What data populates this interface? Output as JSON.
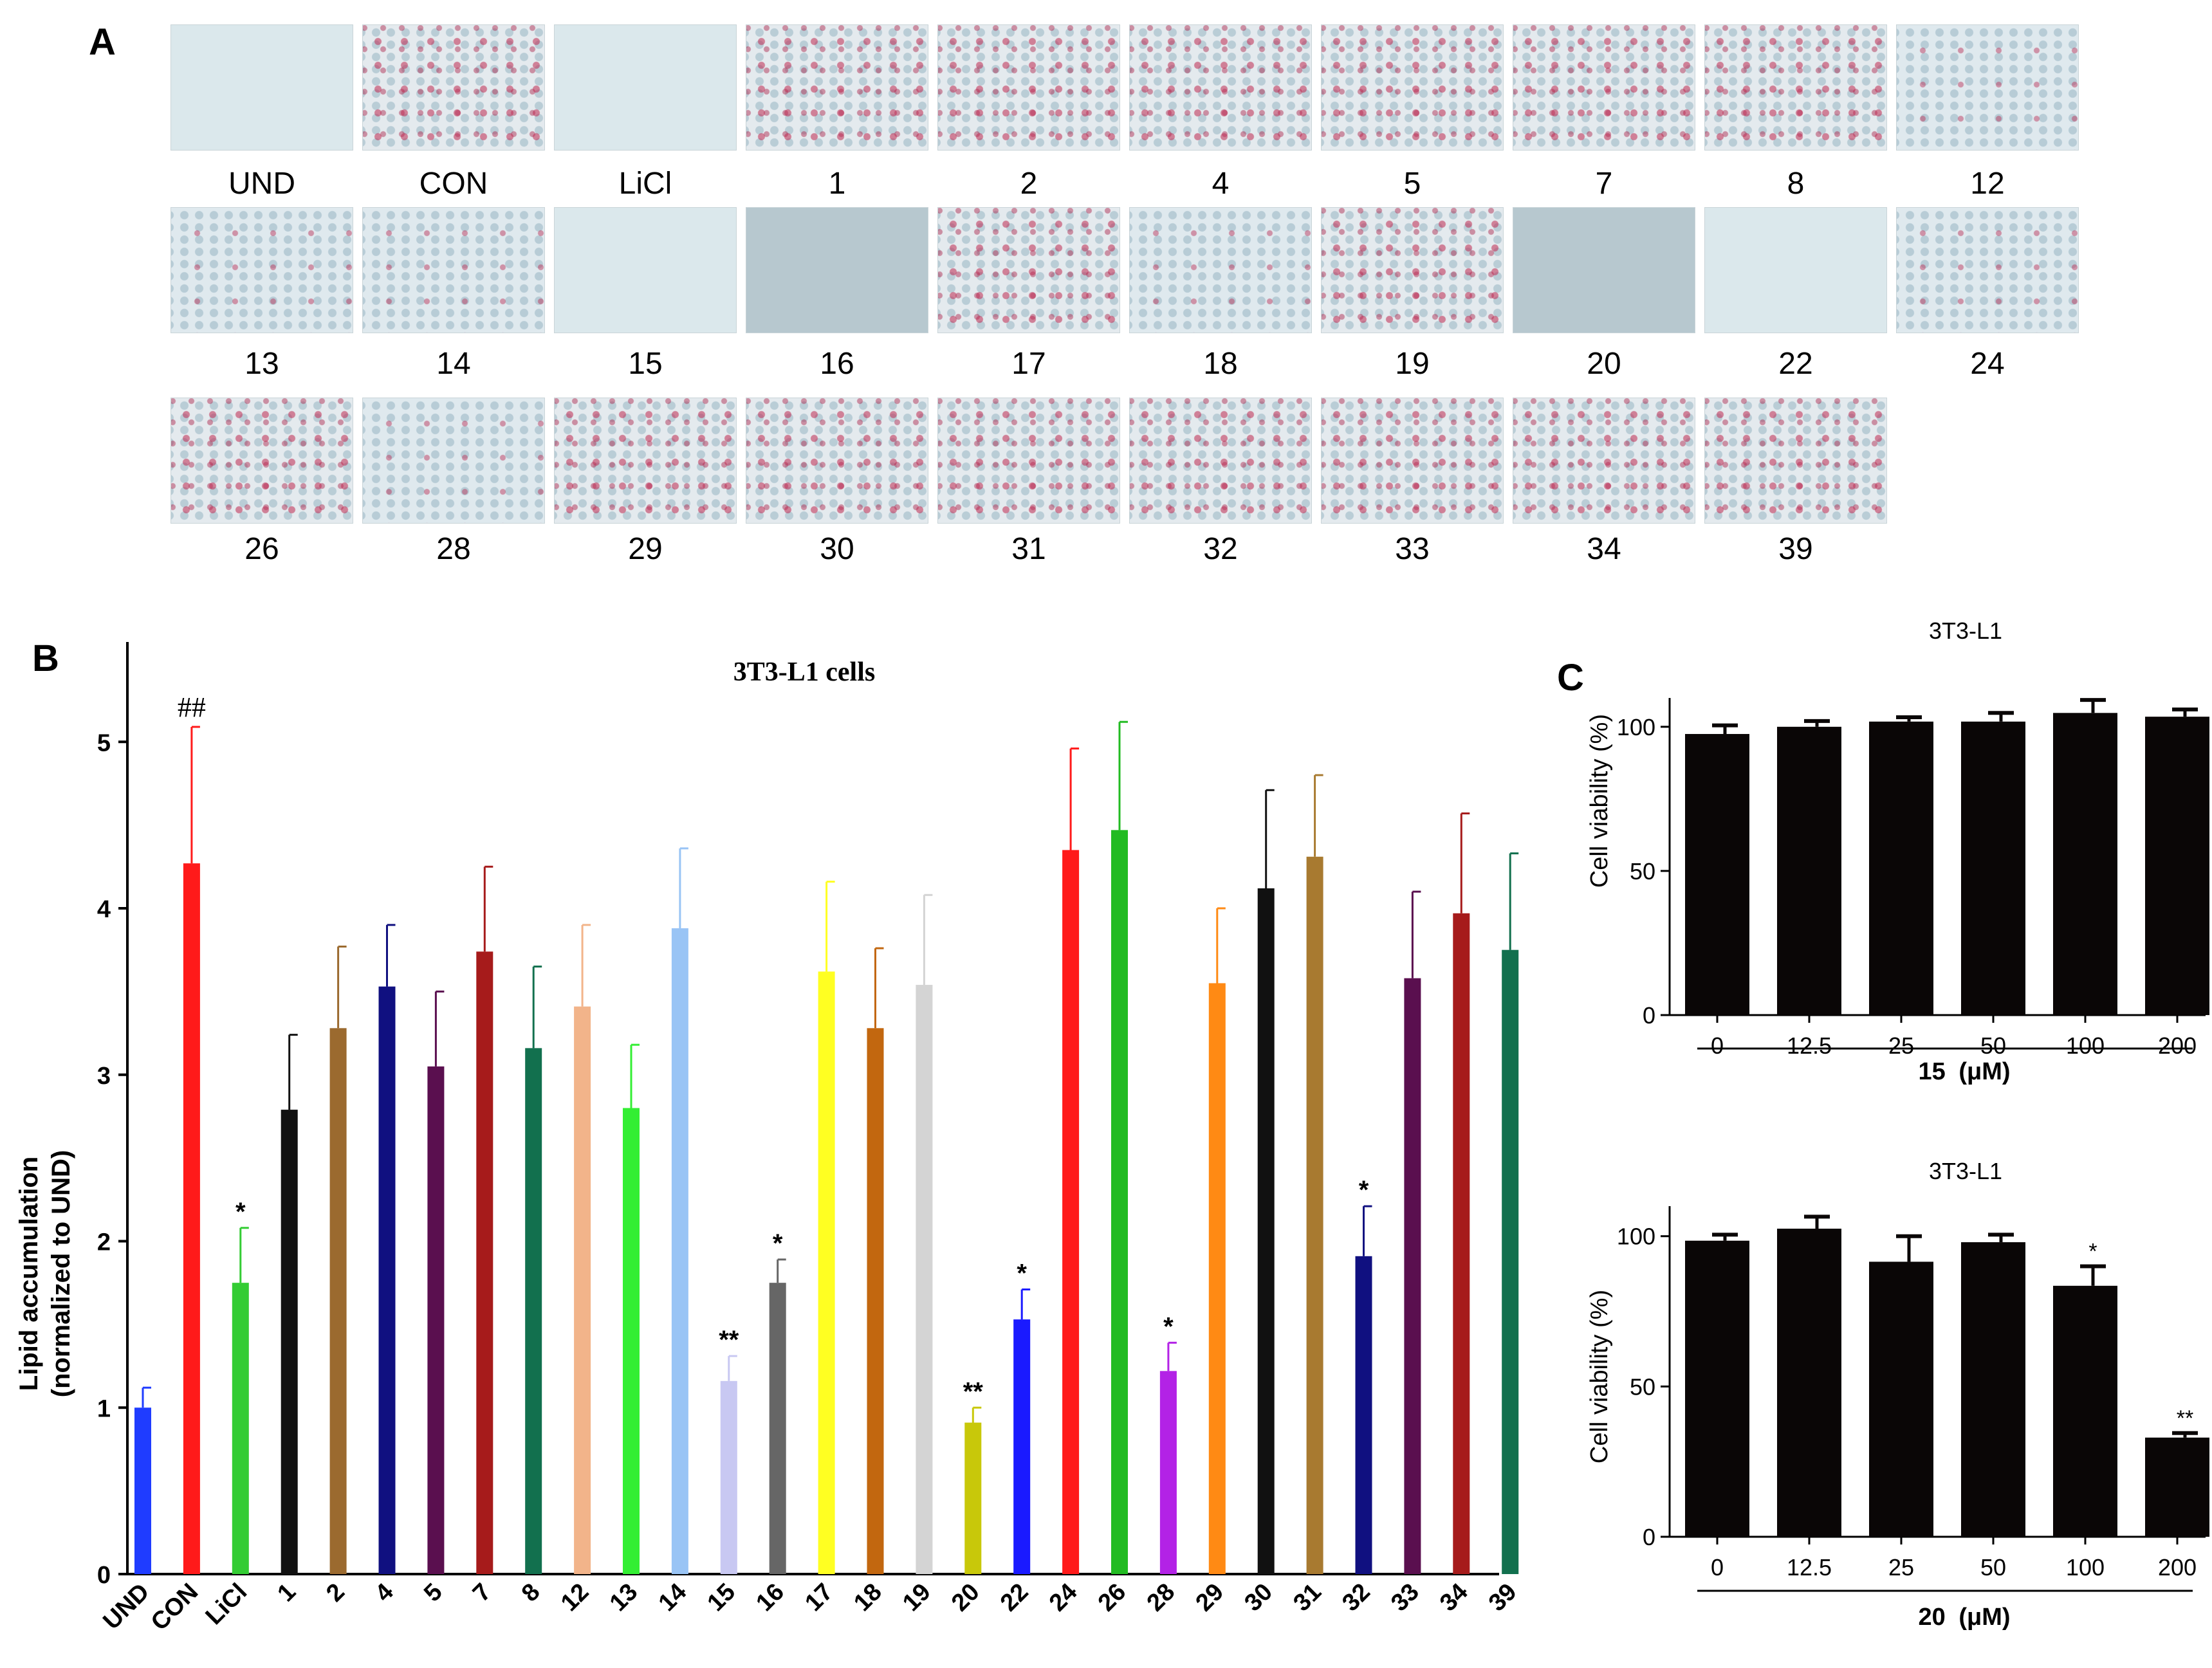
{
  "panels": {
    "a": "A",
    "b": "B",
    "c": "C"
  },
  "micrographs": {
    "rows": [
      [
        "UND",
        "CON",
        "LiCl",
        "1",
        "2",
        "4",
        "5",
        "7",
        "8",
        "12"
      ],
      [
        "13",
        "14",
        "15",
        "16",
        "17",
        "18",
        "19",
        "20",
        "22",
        "24"
      ],
      [
        "26",
        "28",
        "29",
        "30",
        "31",
        "32",
        "33",
        "34",
        "39"
      ]
    ]
  },
  "chart_data": [
    {
      "type": "bar",
      "title": "3T3-L1 cells",
      "xlabel": "",
      "ylabel_line1": "Lipid accumulation",
      "ylabel_line2": "(normalized to UND)",
      "ylim": [
        0,
        5.6
      ],
      "yticks": [
        "0",
        "1",
        "2",
        "3",
        "4",
        "5"
      ],
      "categories": [
        "UND",
        "CON",
        "LiCl",
        "1",
        "2",
        "4",
        "5",
        "7",
        "8",
        "12",
        "13",
        "14",
        "15",
        "16",
        "17",
        "18",
        "19",
        "20",
        "22",
        "24",
        "26",
        "28",
        "29",
        "30",
        "31",
        "32",
        "33",
        "34",
        "39"
      ],
      "values": [
        1.0,
        4.27,
        1.75,
        2.79,
        3.28,
        3.53,
        3.05,
        3.74,
        3.16,
        3.41,
        2.8,
        3.88,
        1.16,
        1.75,
        3.62,
        3.28,
        3.54,
        0.91,
        1.53,
        4.35,
        4.47,
        1.22,
        3.55,
        4.12,
        4.31,
        1.91,
        3.58,
        3.97,
        3.75
      ],
      "errors": [
        0.12,
        0.82,
        0.33,
        0.45,
        0.49,
        0.37,
        0.45,
        0.51,
        0.49,
        0.49,
        0.38,
        0.48,
        0.15,
        0.14,
        0.54,
        0.48,
        0.54,
        0.09,
        0.18,
        0.61,
        0.65,
        0.17,
        0.45,
        0.59,
        0.49,
        0.3,
        0.52,
        0.6,
        0.58
      ],
      "colors": [
        "#1f3cff",
        "#ff1a1a",
        "#33cc33",
        "#111111",
        "#9b6a2f",
        "#101080",
        "#5a0f4f",
        "#a61b1b",
        "#12704e",
        "#f2b48a",
        "#33ee33",
        "#99c4f5",
        "#c8c8f2",
        "#666666",
        "#ffff22",
        "#c2670f",
        "#d4d4d4",
        "#c8c80a",
        "#1a1aff",
        "#ff1a1a",
        "#22bb22",
        "#b322e6",
        "#ff8a14",
        "#111111",
        "#a87a30",
        "#101080",
        "#5a0f4f",
        "#a61b1b",
        "#12704e"
      ],
      "annotations": [
        "",
        "##",
        "*",
        "",
        "",
        "",
        "",
        "",
        "",
        "",
        "",
        "",
        "**",
        "*",
        "",
        "",
        "",
        "**",
        "*",
        "",
        "",
        "*",
        "",
        "",
        "",
        "*",
        "",
        "",
        ""
      ]
    },
    {
      "type": "bar",
      "title": "3T3-L1",
      "xlabel_bold": "15",
      "xlabel_unit": "(μM)",
      "ylabel": "Cell viability (%)",
      "ylim": [
        0,
        110
      ],
      "yticks": [
        "0",
        "50",
        "100"
      ],
      "categories": [
        "0",
        "12.5",
        "25",
        "50",
        "100",
        "200"
      ],
      "values": [
        97.5,
        100.0,
        101.8,
        101.8,
        104.8,
        103.5
      ],
      "errors": [
        3.0,
        2.0,
        1.5,
        3.0,
        4.5,
        2.5
      ],
      "annotations": [
        "",
        "",
        "",
        "",
        "",
        ""
      ]
    },
    {
      "type": "bar",
      "title": "3T3-L1",
      "xlabel_bold": "20",
      "xlabel_unit": "(μM)",
      "ylabel": "Cell viability (%)",
      "ylim": [
        0,
        110
      ],
      "yticks": [
        "0",
        "50",
        "100"
      ],
      "categories": [
        "0",
        "12.5",
        "25",
        "50",
        "100",
        "200"
      ],
      "values": [
        98.5,
        102.5,
        91.5,
        98.0,
        83.5,
        33.0
      ],
      "errors": [
        2.0,
        4.0,
        8.5,
        2.5,
        6.5,
        1.5
      ],
      "annotations": [
        "",
        "",
        "",
        "",
        "*",
        "**"
      ]
    }
  ]
}
